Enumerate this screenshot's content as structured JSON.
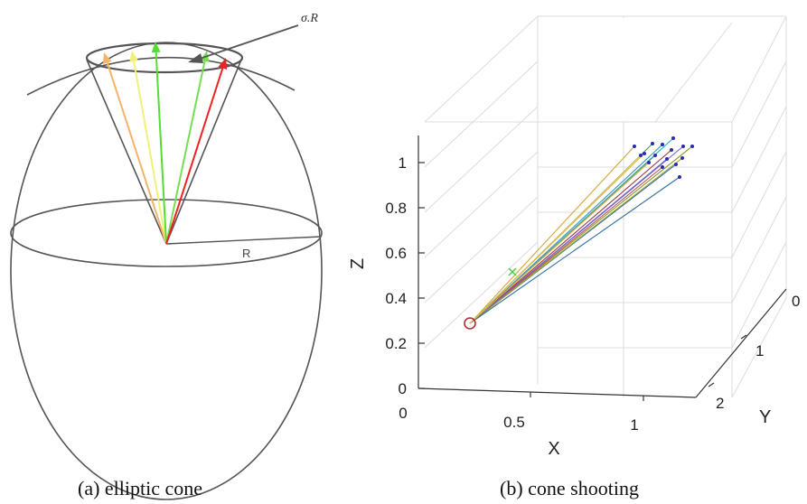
{
  "panel_a": {
    "caption": "(a) elliptic cone",
    "sigma_label": "σ.R",
    "radius_label": "R",
    "arrow_colors": [
      "#f5b36b",
      "#f0f07a",
      "#55dd33",
      "#77dd55",
      "#ee2222"
    ]
  },
  "panel_b": {
    "caption": "(b) cone shooting",
    "x_label": "X",
    "y_label": "Y",
    "z_label": "Z",
    "z_ticks": [
      "0",
      "0.2",
      "0.4",
      "0.6",
      "0.8",
      "1"
    ],
    "x_ticks": [
      "0",
      "0.5",
      "1"
    ],
    "y_ticks": [
      "0",
      "1",
      "2"
    ],
    "origin_marker_color": "#b03030",
    "target_marker_color": "#44cc44",
    "endpoint_color": "#2a2ab0",
    "ray_colors": [
      "#d4a640",
      "#e0c050",
      "#4d9e4d",
      "#3a8fc0",
      "#20b0c0",
      "#9a3a3a",
      "#6a6ad0",
      "#8a9a30",
      "#c05050",
      "#2a6ab0",
      "#50a080",
      "#a0a030",
      "#7060c0",
      "#3070a0"
    ]
  }
}
